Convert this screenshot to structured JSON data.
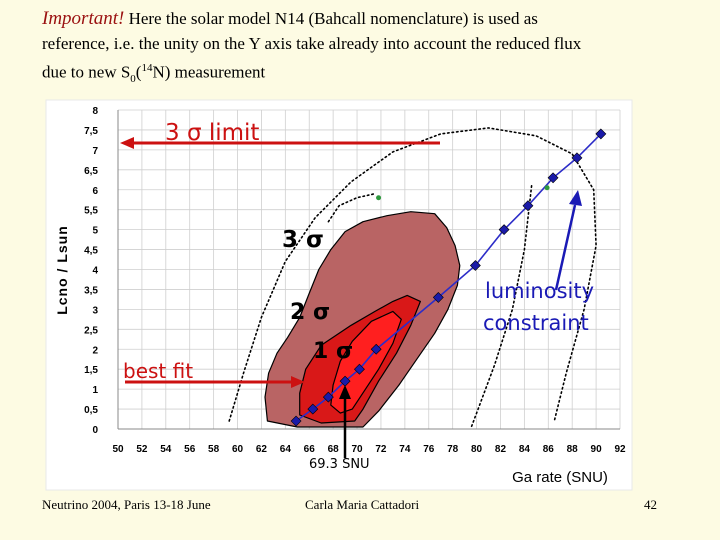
{
  "header": {
    "important": "Important!",
    "text_line1": " Here the solar model N14  (Bahcall nomenclature) is used as",
    "text_line2": "reference, i.e. the unity on the Y axis take already into account the reduced flux",
    "text_line3_pre": "due to new S",
    "text_line3_sub": "0",
    "text_line3_mid": "(",
    "text_line3_sup": "14",
    "text_line3_post": "N) measurement"
  },
  "footer": {
    "left": "Neutrino 2004, Paris 13-18 June",
    "center": "Carla Maria Cattadori",
    "right": "42"
  },
  "colors": {
    "bg": "#fdfbe3",
    "plot_bg": "#ffffff",
    "grid": "#cfcfcf",
    "contour3": "#b96464",
    "contour2": "#d91818",
    "contour1": "#ff1f1f",
    "arrow": "#cc1111",
    "luminosity": "#1a1ab5",
    "fit_line": "#2c2cc8"
  },
  "chart_data": {
    "type": "scatter",
    "xlabel": "Ga rate (SNU)",
    "ylabel": "Lcno / Lsun",
    "xlim": [
      50,
      92
    ],
    "ylim": [
      0,
      8
    ],
    "x_ticks": [
      "50",
      "52",
      "54",
      "56",
      "58",
      "60",
      "62",
      "64",
      "66",
      "68",
      "70",
      "72",
      "74",
      "76",
      "78",
      "80",
      "82",
      "84",
      "86",
      "88",
      "90",
      "92"
    ],
    "y_ticks": [
      "0",
      "0,5",
      "1",
      "1,5",
      "2",
      "2,5",
      "3",
      "3,5",
      "4",
      "4,5",
      "5",
      "5,5",
      "6",
      "6,5",
      "7",
      "7,5",
      "8"
    ],
    "series": [
      {
        "name": "luminosity constraint",
        "x": [
          64.9,
          66.3,
          67.6,
          69.0,
          70.2,
          71.6,
          76.8,
          79.9,
          82.3,
          84.3,
          86.4,
          88.4,
          90.4
        ],
        "y": [
          0.2,
          0.5,
          0.8,
          1.2,
          1.5,
          2.0,
          3.3,
          4.1,
          5.0,
          5.6,
          6.3,
          6.8,
          7.4
        ]
      }
    ],
    "contours": [
      {
        "label": "3 σ",
        "points": [
          [
            62.5,
            0.2
          ],
          [
            62.3,
            0.8
          ],
          [
            62.6,
            1.4
          ],
          [
            63.3,
            1.9
          ],
          [
            64.2,
            2.3
          ],
          [
            65.2,
            2.8
          ],
          [
            66.0,
            3.4
          ],
          [
            66.8,
            4.0
          ],
          [
            67.8,
            4.5
          ],
          [
            69.0,
            4.95
          ],
          [
            70.5,
            5.2
          ],
          [
            72.5,
            5.35
          ],
          [
            74.5,
            5.45
          ],
          [
            76.5,
            5.4
          ],
          [
            77.5,
            5.05
          ],
          [
            78.2,
            4.6
          ],
          [
            78.6,
            4.1
          ],
          [
            78.4,
            3.6
          ],
          [
            77.6,
            3.0
          ],
          [
            76.5,
            2.4
          ],
          [
            75.0,
            1.75
          ],
          [
            73.5,
            1.1
          ],
          [
            71.8,
            0.45
          ],
          [
            70.5,
            0.05
          ],
          [
            65.0,
            0.05
          ]
        ]
      },
      {
        "label": "2 σ",
        "points": [
          [
            65.2,
            0.35
          ],
          [
            65.2,
            0.9
          ],
          [
            65.7,
            1.5
          ],
          [
            67.0,
            2.1
          ],
          [
            69.5,
            2.6
          ],
          [
            71.5,
            2.95
          ],
          [
            73.0,
            3.2
          ],
          [
            74.2,
            3.35
          ],
          [
            75.3,
            3.2
          ],
          [
            74.5,
            2.6
          ],
          [
            73.3,
            1.9
          ],
          [
            71.8,
            1.2
          ],
          [
            70.5,
            0.5
          ],
          [
            69.8,
            0.2
          ],
          [
            67.0,
            0.15
          ]
        ]
      },
      {
        "label": "1 σ",
        "points": [
          [
            67.8,
            0.6
          ],
          [
            68.0,
            1.1
          ],
          [
            68.6,
            1.7
          ],
          [
            69.6,
            2.2
          ],
          [
            71.2,
            2.7
          ],
          [
            73.0,
            2.95
          ],
          [
            73.7,
            2.75
          ],
          [
            73.0,
            2.15
          ],
          [
            71.8,
            1.5
          ],
          [
            70.6,
            0.95
          ],
          [
            69.6,
            0.5
          ],
          [
            68.6,
            0.4
          ]
        ]
      }
    ],
    "dotted_ellipse": {
      "outer": [
        [
          59.3,
          0.2
        ],
        [
          60.5,
          1.4
        ],
        [
          62.0,
          2.8
        ],
        [
          64.0,
          4.2
        ],
        [
          66.5,
          5.3
        ],
        [
          69.5,
          6.2
        ],
        [
          73.0,
          6.95
        ],
        [
          77.0,
          7.4
        ],
        [
          81.0,
          7.55
        ],
        [
          85.0,
          7.35
        ],
        [
          88.0,
          6.9
        ],
        [
          89.8,
          6.0
        ],
        [
          90.0,
          4.6
        ],
        [
          89.0,
          3.0
        ],
        [
          87.5,
          1.4
        ],
        [
          86.5,
          0.2
        ]
      ],
      "inner": [
        [
          67.6,
          5.2
        ],
        [
          68.5,
          5.6
        ],
        [
          70.0,
          5.8
        ],
        [
          71.5,
          5.9
        ]
      ],
      "inner_right": [
        [
          84.6,
          6.1
        ],
        [
          84.0,
          4.5
        ],
        [
          83.0,
          3.0
        ],
        [
          81.5,
          1.6
        ],
        [
          80.0,
          0.4
        ],
        [
          79.5,
          0.0
        ]
      ]
    },
    "green_dots": [
      [
        71.8,
        5.8
      ],
      [
        85.9,
        6.05
      ]
    ],
    "annotations": {
      "limit3": "3 σ limit",
      "sigma3": "3 σ",
      "sigma2": "2 σ",
      "sigma1": "1 σ",
      "best_fit": "best fit",
      "snu": "69.3 SNU",
      "lum": [
        "luminosity",
        "constraint"
      ]
    }
  }
}
